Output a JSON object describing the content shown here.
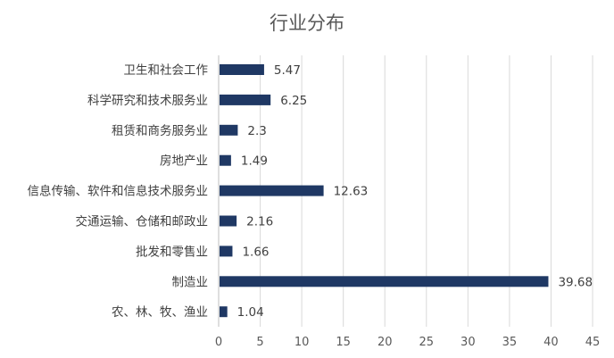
{
  "chart_data": {
    "type": "bar",
    "orientation": "horizontal",
    "title": "行业分布",
    "categories": [
      "卫生和社会工作",
      "科学研究和技术服务业",
      "租赁和商务服务业",
      "房地产业",
      "信息传输、软件和信息技术服务业",
      "交通运输、仓储和邮政业",
      "批发和零售业",
      "制造业",
      "农、林、牧、渔业"
    ],
    "values": [
      5.47,
      6.25,
      2.3,
      1.49,
      12.63,
      2.16,
      1.66,
      39.68,
      1.04
    ],
    "value_labels": [
      "5.47",
      "6.25",
      "2.3",
      "1.49",
      "12.63",
      "2.16",
      "1.66",
      "39.68",
      "1.04"
    ],
    "xlim": [
      0,
      45
    ],
    "xticks": [
      0,
      5,
      10,
      15,
      20,
      25,
      30,
      35,
      40,
      45
    ],
    "xtick_labels": [
      "0",
      "5",
      "10",
      "15",
      "20",
      "25",
      "30",
      "35",
      "40",
      "45"
    ],
    "grid": "vertical",
    "legend": "none",
    "bar_color": "#1f3864"
  }
}
